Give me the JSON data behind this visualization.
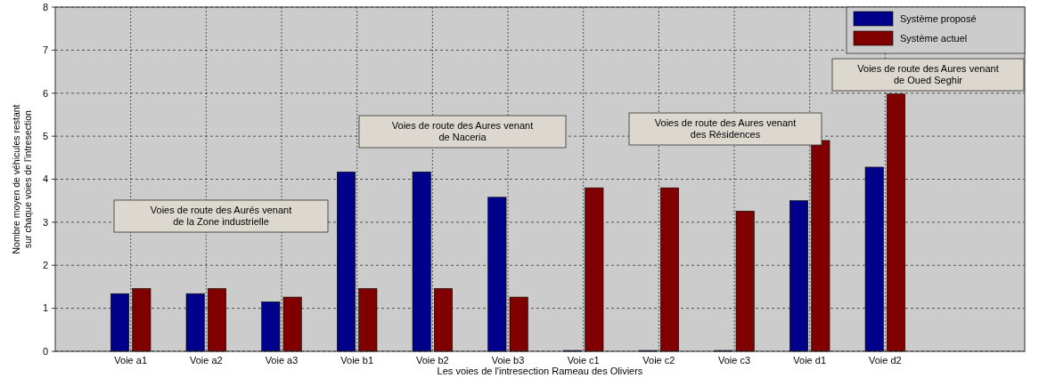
{
  "chart_data": {
    "type": "bar",
    "xlabel": "Les voies de l'intresection Rameau des Oliviers",
    "ylabel": "Nombre moyen de véhicules restant\nsur chaque voies de l'intresection",
    "categories": [
      "Voie a1",
      "Voie a2",
      "Voie a3",
      "Voie b1",
      "Voie b2",
      "Voie b3",
      "Voie c1",
      "Voie c2",
      "Voie c3",
      "Voie d1",
      "Voie d2"
    ],
    "series": [
      {
        "name": "Système proposé",
        "color": "#00008b",
        "values": [
          1.34,
          1.34,
          1.15,
          4.17,
          4.17,
          3.58,
          0.02,
          0.02,
          0.02,
          3.5,
          4.28
        ]
      },
      {
        "name": "Système actuel",
        "color": "#800000",
        "values": [
          1.46,
          1.46,
          1.26,
          1.46,
          1.46,
          1.26,
          3.8,
          3.8,
          3.26,
          4.9,
          5.98
        ]
      }
    ],
    "ylim": [
      0,
      8
    ],
    "yticks": [
      0,
      1,
      2,
      3,
      4,
      5,
      6,
      7,
      8
    ],
    "grid": true,
    "legend": "top right",
    "annotations": [
      "Voies de route des Aurés venant\nde la Zone industrielle",
      "Voies de route des Aures venant\nde Naceria",
      "Voies de route des Aures venant\ndes Résidences",
      "Voies de route des Aures venant\nde Oued Seghir"
    ]
  }
}
